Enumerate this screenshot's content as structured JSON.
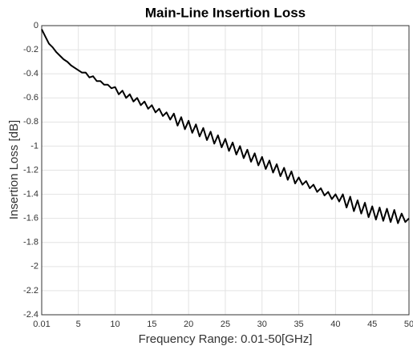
{
  "chart_data": {
    "type": "line",
    "title": "Main-Line Insertion Loss",
    "x_label": "Frequency Range: 0.01-50[GHz]",
    "y_label": "Insertion Loss [dB]",
    "x": [
      0.01,
      0.5,
      1,
      1.5,
      2,
      2.5,
      3,
      3.5,
      4,
      4.5,
      5,
      5.5,
      6,
      6.5,
      7,
      7.5,
      8,
      8.5,
      9,
      9.5,
      10,
      10.5,
      11,
      11.5,
      12,
      12.5,
      13,
      13.5,
      14,
      14.5,
      15,
      15.5,
      16,
      16.5,
      17,
      17.5,
      18,
      18.5,
      19,
      19.5,
      20,
      20.5,
      21,
      21.5,
      22,
      22.5,
      23,
      23.5,
      24,
      24.5,
      25,
      25.5,
      26,
      26.5,
      27,
      27.5,
      28,
      28.5,
      29,
      29.5,
      30,
      30.5,
      31,
      31.5,
      32,
      32.5,
      33,
      33.5,
      34,
      34.5,
      35,
      35.5,
      36,
      36.5,
      37,
      37.5,
      38,
      38.5,
      39,
      39.5,
      40,
      40.5,
      41,
      41.5,
      42,
      42.5,
      43,
      43.5,
      44,
      44.5,
      45,
      45.5,
      46,
      46.5,
      47,
      47.5,
      48,
      48.5,
      49,
      49.5,
      50
    ],
    "values": [
      -0.03,
      -0.09,
      -0.15,
      -0.18,
      -0.22,
      -0.25,
      -0.28,
      -0.3,
      -0.33,
      -0.35,
      -0.37,
      -0.39,
      -0.39,
      -0.43,
      -0.42,
      -0.46,
      -0.46,
      -0.49,
      -0.49,
      -0.52,
      -0.51,
      -0.57,
      -0.54,
      -0.6,
      -0.57,
      -0.63,
      -0.6,
      -0.66,
      -0.63,
      -0.69,
      -0.66,
      -0.72,
      -0.69,
      -0.75,
      -0.72,
      -0.78,
      -0.73,
      -0.83,
      -0.76,
      -0.86,
      -0.79,
      -0.89,
      -0.82,
      -0.92,
      -0.85,
      -0.95,
      -0.88,
      -0.98,
      -0.91,
      -1.01,
      -0.94,
      -1.04,
      -0.97,
      -1.07,
      -1.0,
      -1.1,
      -1.03,
      -1.13,
      -1.06,
      -1.16,
      -1.09,
      -1.19,
      -1.12,
      -1.22,
      -1.15,
      -1.25,
      -1.18,
      -1.28,
      -1.21,
      -1.31,
      -1.26,
      -1.32,
      -1.29,
      -1.35,
      -1.32,
      -1.38,
      -1.35,
      -1.41,
      -1.38,
      -1.44,
      -1.4,
      -1.46,
      -1.4,
      -1.51,
      -1.42,
      -1.54,
      -1.45,
      -1.56,
      -1.47,
      -1.59,
      -1.5,
      -1.61,
      -1.51,
      -1.62,
      -1.52,
      -1.63,
      -1.53,
      -1.64,
      -1.56,
      -1.63,
      -1.6
    ],
    "color": "#000000",
    "xlim": [
      0.01,
      50
    ],
    "xticks": [
      0.01,
      5,
      10,
      15,
      20,
      25,
      30,
      35,
      40,
      45,
      50
    ],
    "ylim": [
      -2.4,
      0
    ],
    "yticks": [
      0,
      -0.2,
      -0.4,
      -0.6,
      -0.8,
      -1,
      -1.2,
      -1.4,
      -1.6,
      -1.8,
      -2,
      -2.2,
      -2.4
    ],
    "grid": true
  }
}
